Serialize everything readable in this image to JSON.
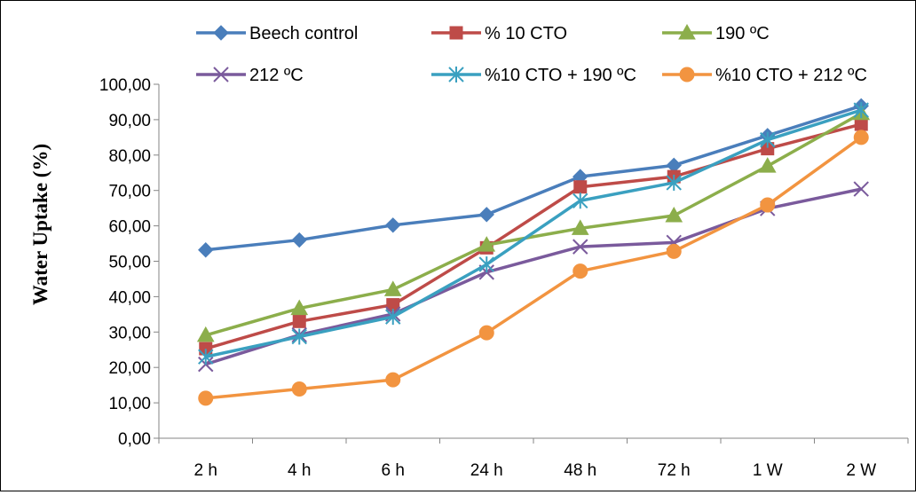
{
  "chart_data": {
    "type": "line",
    "title": "",
    "xlabel": "",
    "ylabel": "Water Uptake (%)",
    "categories": [
      "2 h",
      "4 h",
      "6 h",
      "24 h",
      "48 h",
      "72 h",
      "1 W",
      "2 W"
    ],
    "ylim": [
      0,
      100
    ],
    "yticks": [
      "0,00",
      "10,00",
      "20,00",
      "30,00",
      "40,00",
      "50,00",
      "60,00",
      "70,00",
      "80,00",
      "90,00",
      "100,00"
    ],
    "grid": false,
    "legend_position": "top",
    "series": [
      {
        "name": "Beech control",
        "color": "#4a7ebb",
        "marker": "diamond",
        "values": [
          53.2,
          56.0,
          60.2,
          63.2,
          73.9,
          77.1,
          85.5,
          93.9
        ]
      },
      {
        "name": "% 10 CTO",
        "color": "#be4b48",
        "marker": "square",
        "values": [
          25.3,
          33.0,
          37.7,
          53.8,
          71.0,
          73.9,
          81.8,
          88.7
        ]
      },
      {
        "name": "190 ºC",
        "color": "#8cae4b",
        "marker": "triangle",
        "values": [
          29.1,
          36.7,
          42.0,
          54.6,
          59.3,
          62.9,
          76.9,
          91.8
        ]
      },
      {
        "name": "212 ºC",
        "color": "#7a5a9c",
        "marker": "x",
        "values": [
          20.9,
          29.2,
          35.1,
          46.9,
          54.1,
          55.3,
          64.9,
          70.4
        ]
      },
      {
        "name": "%10 CTO + 190 ºC",
        "color": "#3aa0c0",
        "marker": "star",
        "values": [
          23.0,
          28.7,
          34.3,
          49.1,
          67.1,
          72.2,
          84.3,
          92.7
        ]
      },
      {
        "name": "%10 CTO + 212 ºC",
        "color": "#f29440",
        "marker": "circle",
        "values": [
          11.3,
          13.9,
          16.5,
          29.8,
          47.2,
          52.8,
          65.9,
          85.0
        ]
      }
    ]
  }
}
